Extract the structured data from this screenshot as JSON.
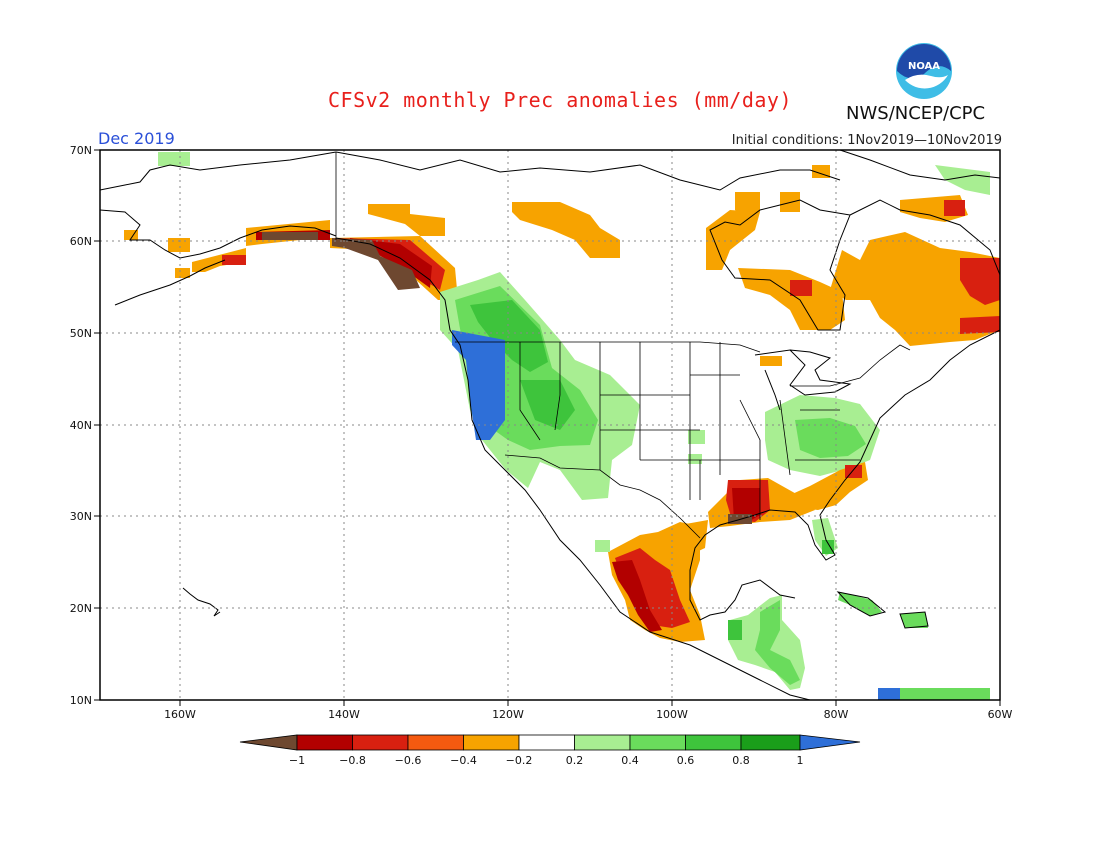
{
  "header": {
    "title": "CFSv2 monthly Prec anomalies (mm/day)",
    "org": "NWS/NCEP/CPC",
    "logo_text": "NOAA",
    "period": "Dec 2019",
    "initial_conditions": "Initial conditions: 1Nov2019—10Nov2019"
  },
  "map": {
    "lon_range": [
      -172,
      -60
    ],
    "lat_range": [
      10,
      70
    ],
    "grid": "dotted",
    "lat_ticks": [
      "70N",
      "60N",
      "50N",
      "40N",
      "30N",
      "20N",
      "10N"
    ],
    "lon_ticks": [
      "160W",
      "140W",
      "120W",
      "100W",
      "80W",
      "60W"
    ],
    "colors": {
      "border": "#000000",
      "land_outline": "#000000",
      "grid": "#888888"
    }
  },
  "colorbar": {
    "labels": [
      "−1",
      "−0.8",
      "−0.6",
      "−0.4",
      "−0.2",
      "0.2",
      "0.4",
      "0.6",
      "0.8",
      "1"
    ],
    "colors": [
      "#6e4830",
      "#b20000",
      "#d82010",
      "#f55a10",
      "#f7a300",
      "#ffffff",
      "#a8ee92",
      "#6adc5c",
      "#3ec43c",
      "#1a9e1a",
      "#2e6fd8"
    ]
  },
  "anomaly_regions": [
    {
      "name": "alaska-bering",
      "category": "#a8ee92"
    },
    {
      "name": "alaska-southwest",
      "category": "#f7a300"
    },
    {
      "name": "alaska-gulf-coast",
      "category": "#6e4830"
    },
    {
      "name": "pacific-northwest-coast",
      "category": "#2e6fd8"
    },
    {
      "name": "interior-west",
      "category": "#6adc5c"
    },
    {
      "name": "northern-canada",
      "category": "#f7a300"
    },
    {
      "name": "hudson-bay-quebec",
      "category": "#f7a300"
    },
    {
      "name": "labrador",
      "category": "#d82010"
    },
    {
      "name": "ohio-valley",
      "category": "#a8ee92"
    },
    {
      "name": "gulf-coast",
      "category": "#b20000"
    },
    {
      "name": "southeast-coast",
      "category": "#f7a300"
    },
    {
      "name": "mexico-west",
      "category": "#b20000"
    },
    {
      "name": "central-america",
      "category": "#6adc5c"
    },
    {
      "name": "caribbean",
      "category": "#6adc5c"
    }
  ]
}
